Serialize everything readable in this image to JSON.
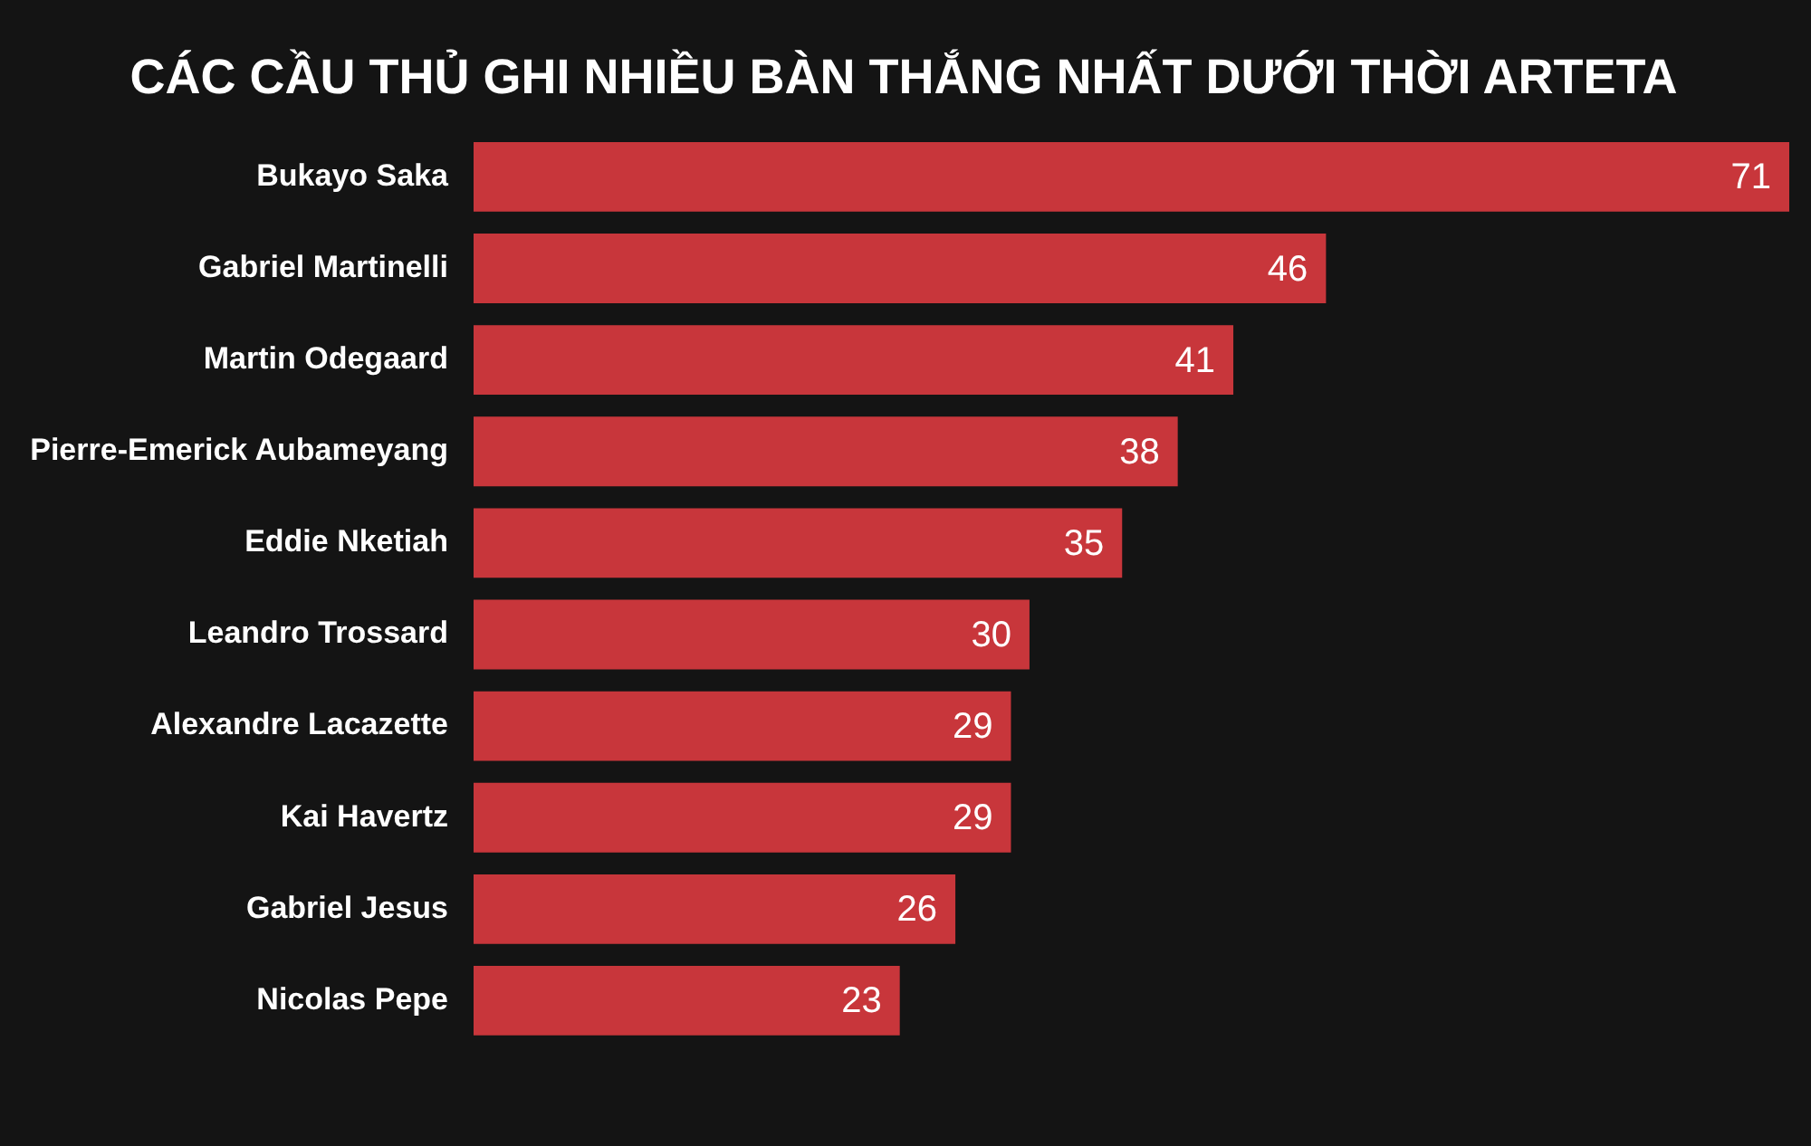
{
  "chart_data": {
    "type": "bar",
    "orientation": "horizontal",
    "title": "CÁC CẦU THỦ GHI NHIỀU BÀN THẮNG NHẤT DƯỚI THỜI ARTETA",
    "categories": [
      "Bukayo Saka",
      "Gabriel Martinelli",
      "Martin Odegaard",
      "Pierre-Emerick Aubameyang",
      "Eddie Nketiah",
      "Leandro Trossard",
      "Alexandre Lacazette",
      "Kai Havertz",
      "Gabriel Jesus",
      "Nicolas Pepe"
    ],
    "values": [
      71,
      46,
      41,
      38,
      35,
      30,
      29,
      29,
      26,
      23
    ],
    "color": "#c8363b",
    "data_labels": true
  }
}
